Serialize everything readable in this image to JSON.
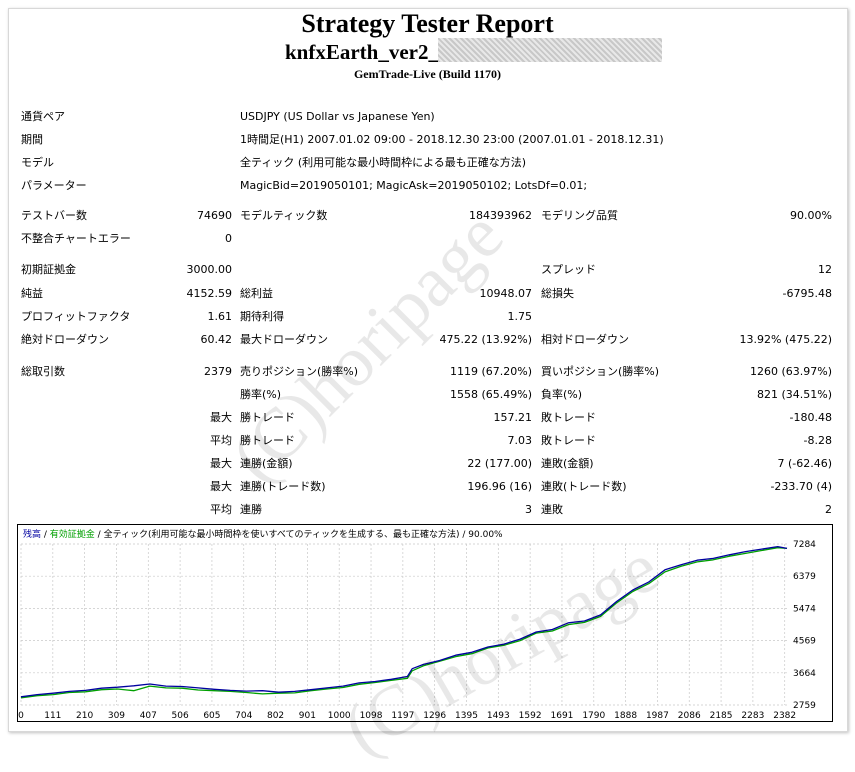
{
  "title": "Strategy Tester Report",
  "ea_name": "knfxEarth_ver2_",
  "server": "GemTrade-Live (Build 1170)",
  "info": {
    "pair_label": "通貨ペア",
    "pair_value": "USDJPY (US Dollar vs Japanese Yen)",
    "period_label": "期間",
    "period_value": "1時間足(H1) 2007.01.02 09:00 - 2018.12.30 23:00 (2007.01.01 - 2018.12.31)",
    "model_label": "モデル",
    "model_value": "全ティック (利用可能な最小時間枠による最も正確な方法)",
    "params_label": "パラメーター",
    "params_value": "MagicBid=2019050101; MagicAsk=2019050102; LotsDf=0.01;"
  },
  "stats": {
    "bars_label": "テストバー数",
    "bars_value": "74690",
    "ticks_label": "モデルティック数",
    "ticks_value": "184393962",
    "quality_label": "モデリング品質",
    "quality_value": "90.00%",
    "mismatch_label": "不整合チャートエラー",
    "mismatch_value": "0",
    "deposit_label": "初期証拠金",
    "deposit_value": "3000.00",
    "spread_label": "スプレッド",
    "spread_value": "12",
    "net_label": "純益",
    "net_value": "4152.59",
    "gross_profit_label": "総利益",
    "gross_profit_value": "10948.07",
    "gross_loss_label": "総損失",
    "gross_loss_value": "-6795.48",
    "pf_label": "プロフィットファクタ",
    "pf_value": "1.61",
    "expected_label": "期待利得",
    "expected_value": "1.75",
    "abs_dd_label": "絶対ドローダウン",
    "abs_dd_value": "60.42",
    "max_dd_label": "最大ドローダウン",
    "max_dd_value": "475.22 (13.92%)",
    "rel_dd_label": "相対ドローダウン",
    "rel_dd_value": "13.92% (475.22)",
    "trades_label": "総取引数",
    "trades_value": "2379",
    "short_label": "売りポジション(勝率%)",
    "short_value": "1119 (67.20%)",
    "long_label": "買いポジション(勝率%)",
    "long_value": "1260 (63.97%)",
    "win_label": "勝率(%)",
    "win_value": "1558 (65.49%)",
    "loss_label": "負率(%)",
    "loss_value": "821 (34.51%)",
    "max1": "最大",
    "largest_win_label": "勝トレード",
    "largest_win_value": "157.21",
    "largest_loss_label": "敗トレード",
    "largest_loss_value": "-180.48",
    "avg1": "平均",
    "avg_win_label": "勝トレード",
    "avg_win_value": "7.03",
    "avg_loss_label": "敗トレード",
    "avg_loss_value": "-8.28",
    "max2": "最大",
    "max_consec_wins_label": "連勝(金額)",
    "max_consec_wins_value": "22 (177.00)",
    "max_consec_losses_label": "連敗(金額)",
    "max_consec_losses_value": "7 (-62.46)",
    "max3": "最大",
    "max_consec_profit_label": "連勝(トレード数)",
    "max_consec_profit_value": "196.96 (16)",
    "max_consec_loss_label": "連敗(トレード数)",
    "max_consec_loss_value": "-233.70 (4)",
    "avg2": "平均",
    "avg_consec_wins_label": "連勝",
    "avg_consec_wins_value": "3",
    "avg_consec_losses_label": "連敗",
    "avg_consec_losses_value": "2"
  },
  "watermark": "(C)horipage",
  "chart_data": {
    "type": "line",
    "legend": {
      "balance": "残高",
      "sep": " / ",
      "equity": "有効証拠金",
      "mode": "全ティック(利用可能な最小時間枠を使いすべてのティックを生成する、最も正確な方法)",
      "quality": "90.00%"
    },
    "x_ticks": [
      "0",
      "111",
      "210",
      "309",
      "407",
      "506",
      "605",
      "704",
      "802",
      "901",
      "1000",
      "1098",
      "1197",
      "1296",
      "1395",
      "1493",
      "1592",
      "1691",
      "1790",
      "1888",
      "1987",
      "2086",
      "2185",
      "2283",
      "2382"
    ],
    "y_ticks": [
      "7284",
      "6379",
      "5474",
      "4569",
      "3664",
      "2759"
    ],
    "xlim": [
      0,
      2379
    ],
    "ylim": [
      2759,
      7284
    ],
    "colors": {
      "balance": "#0000a0",
      "equity": "#00a000"
    },
    "series": [
      {
        "name": "残高",
        "x": [
          0,
          50,
          100,
          150,
          200,
          250,
          300,
          350,
          400,
          450,
          500,
          550,
          600,
          650,
          700,
          750,
          800,
          850,
          900,
          950,
          1000,
          1050,
          1100,
          1150,
          1200,
          1215,
          1250,
          1300,
          1350,
          1400,
          1450,
          1500,
          1550,
          1600,
          1650,
          1700,
          1750,
          1800,
          1850,
          1900,
          1950,
          2000,
          2050,
          2100,
          2150,
          2200,
          2250,
          2300,
          2350,
          2379
        ],
        "y": [
          2990,
          3050,
          3090,
          3140,
          3170,
          3230,
          3260,
          3300,
          3350,
          3290,
          3280,
          3240,
          3200,
          3170,
          3150,
          3160,
          3120,
          3140,
          3190,
          3240,
          3290,
          3380,
          3420,
          3480,
          3560,
          3780,
          3900,
          4010,
          4160,
          4240,
          4390,
          4470,
          4610,
          4810,
          4880,
          5070,
          5120,
          5290,
          5670,
          5990,
          6220,
          6560,
          6700,
          6830,
          6880,
          6980,
          7070,
          7140,
          7210,
          7160
        ]
      },
      {
        "name": "有効証拠金",
        "x": [
          0,
          50,
          100,
          150,
          200,
          250,
          300,
          350,
          400,
          450,
          500,
          550,
          600,
          650,
          700,
          750,
          800,
          850,
          900,
          950,
          1000,
          1050,
          1100,
          1150,
          1200,
          1215,
          1250,
          1300,
          1350,
          1400,
          1450,
          1500,
          1550,
          1600,
          1650,
          1700,
          1750,
          1800,
          1850,
          1900,
          1950,
          2000,
          2050,
          2100,
          2150,
          2200,
          2250,
          2300,
          2350,
          2379
        ],
        "y": [
          2960,
          3020,
          3050,
          3110,
          3130,
          3190,
          3210,
          3160,
          3290,
          3240,
          3230,
          3180,
          3160,
          3140,
          3110,
          3070,
          3090,
          3100,
          3160,
          3210,
          3250,
          3340,
          3390,
          3450,
          3510,
          3720,
          3860,
          3990,
          4120,
          4200,
          4360,
          4440,
          4570,
          4780,
          4840,
          5020,
          5080,
          5250,
          5630,
          5950,
          6170,
          6500,
          6660,
          6780,
          6840,
          6940,
          7020,
          7100,
          7180,
          7160
        ]
      }
    ]
  }
}
